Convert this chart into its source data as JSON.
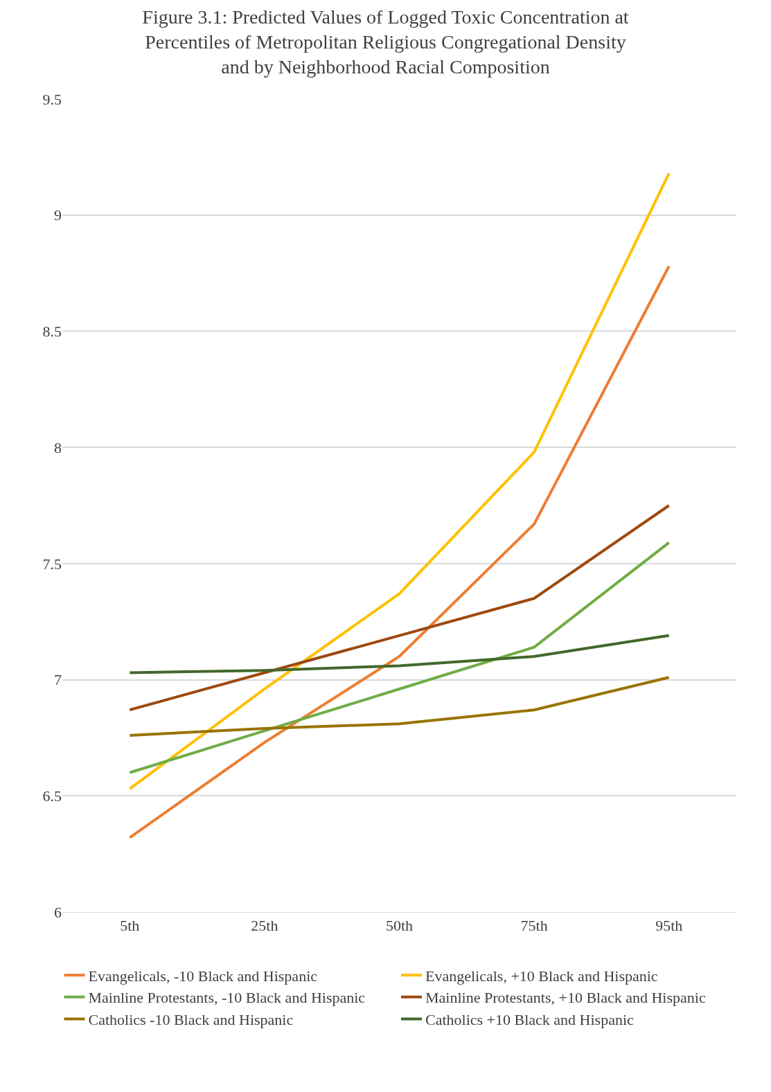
{
  "chart_data": {
    "type": "line",
    "title": "Figure 3.1: Predicted Values of Logged Toxic Concentration at Percentiles of Metropolitan Religious Congregational Density and by Neighborhood Racial Composition",
    "categories": [
      "5th",
      "25th",
      "50th",
      "75th",
      "95th"
    ],
    "series": [
      {
        "name": "Evangelicals, -10 Black and Hispanic",
        "color": "#ed7d31",
        "values": [
          6.32,
          6.73,
          7.1,
          7.67,
          8.78
        ]
      },
      {
        "name": "Evangelicals, +10 Black and Hispanic",
        "color": "#ffc000",
        "values": [
          6.53,
          6.96,
          7.37,
          7.98,
          9.18
        ]
      },
      {
        "name": "Mainline Protestants, -10 Black and Hispanic",
        "color": "#70ad47",
        "values": [
          6.6,
          6.78,
          6.96,
          7.14,
          7.59
        ]
      },
      {
        "name": "Mainline Protestants, +10 Black and Hispanic",
        "color": "#9e480e",
        "values": [
          6.87,
          7.03,
          7.19,
          7.35,
          7.75
        ]
      },
      {
        "name": "Catholics -10 Black and Hispanic",
        "color": "#997300",
        "values": [
          6.76,
          6.79,
          6.81,
          6.87,
          7.01
        ]
      },
      {
        "name": "Catholics +10 Black and Hispanic",
        "color": "#43682b",
        "values": [
          7.03,
          7.04,
          7.06,
          7.1,
          7.19
        ]
      }
    ],
    "ylim": [
      6,
      9.5
    ],
    "yticks": [
      6,
      6.5,
      7,
      7.5,
      8,
      8.5,
      9,
      9.5
    ],
    "grid": "y",
    "legend": "bottom",
    "marker": "none",
    "line_style": "solid"
  }
}
